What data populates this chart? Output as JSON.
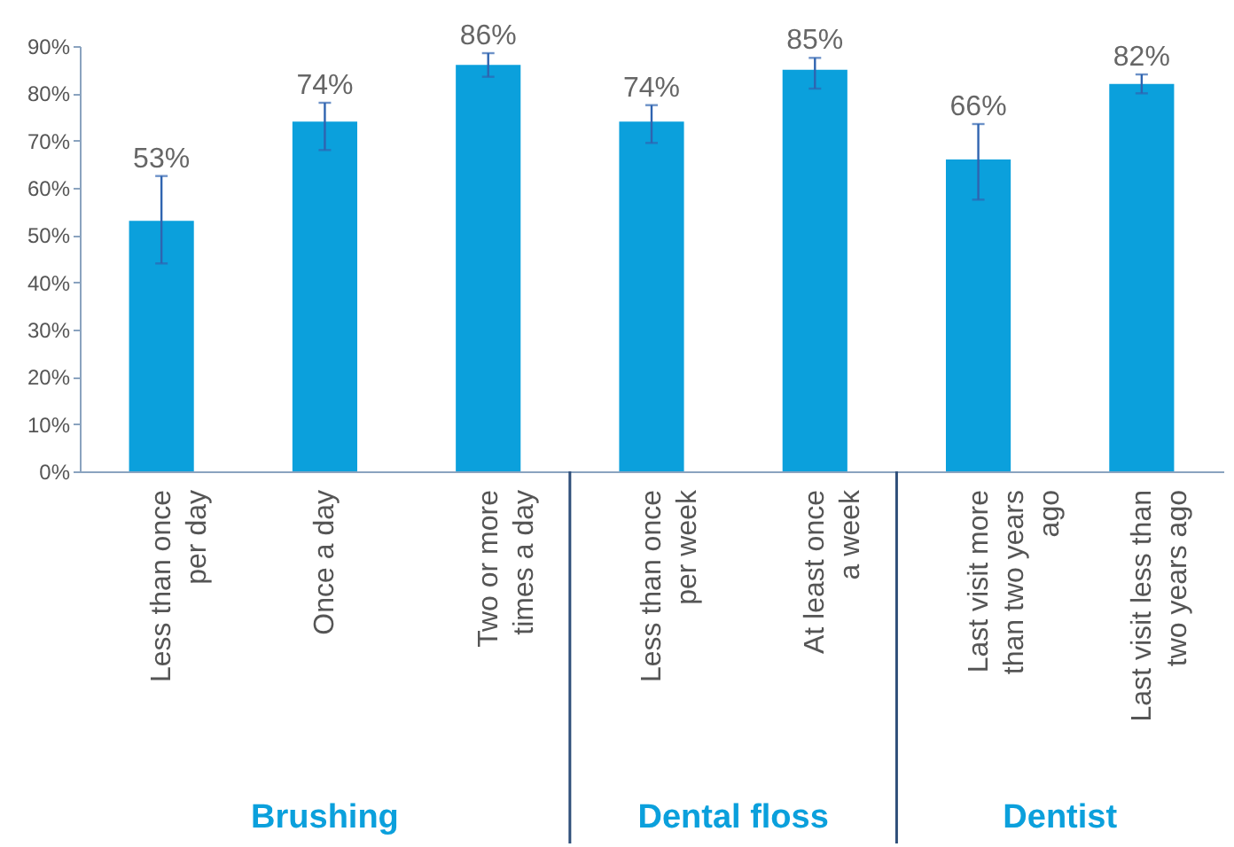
{
  "chart_data": {
    "type": "bar",
    "categories": [
      "Less than once per day",
      "Once a day",
      "Two or more times a day",
      "Less than once per week",
      "At least once a week",
      "Last visit more than two years ago",
      "Last visit less than two years ago"
    ],
    "values": [
      53,
      74,
      86,
      74,
      85,
      66,
      82
    ],
    "value_labels": [
      "53%",
      "74%",
      "86%",
      "74%",
      "85%",
      "66%",
      "82%"
    ],
    "errors": [
      [
        44,
        62.5
      ],
      [
        68,
        78
      ],
      [
        83.5,
        88.5
      ],
      [
        69.5,
        77.5
      ],
      [
        81,
        87.5
      ],
      [
        57.5,
        73.5
      ],
      [
        80,
        84
      ]
    ],
    "color": "#0ba0dc",
    "ylim": [
      0,
      90
    ],
    "yticks": [
      {
        "value": 0,
        "label": "0%"
      },
      {
        "value": 10,
        "label": "10%"
      },
      {
        "value": 20,
        "label": "20%"
      },
      {
        "value": 30,
        "label": "30%"
      },
      {
        "value": 40,
        "label": "40%"
      },
      {
        "value": 50,
        "label": "50%"
      },
      {
        "value": 60,
        "label": "60%"
      },
      {
        "value": 70,
        "label": "70%"
      },
      {
        "value": 80,
        "label": "80%"
      },
      {
        "value": 90,
        "label": "90%"
      }
    ],
    "grid": false,
    "annotations": [
      "Brushing",
      "Dental floss",
      "Dentist"
    ]
  }
}
